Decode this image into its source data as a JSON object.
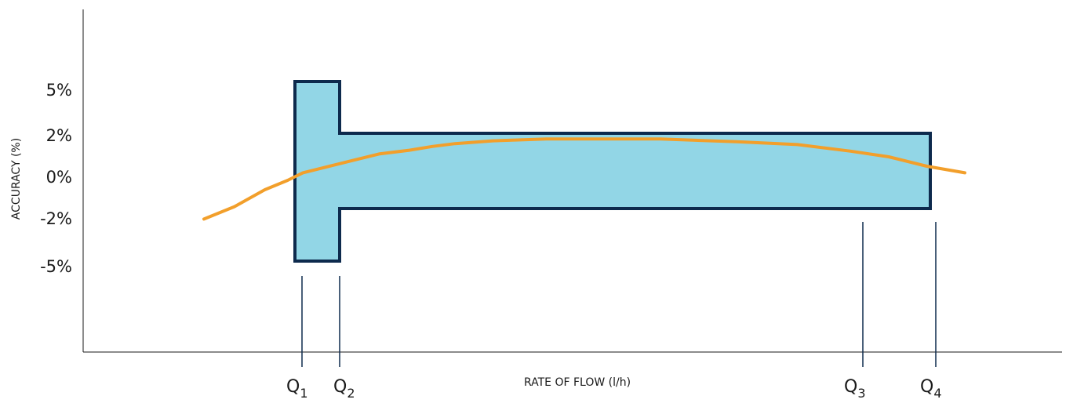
{
  "chart_data": {
    "type": "line",
    "title": "",
    "xlabel": "RATE OF FLOW (l/h)",
    "ylabel": "ACCURACY (%)",
    "y_tick_labels": [
      "5%",
      "2%",
      "0%",
      "-2%",
      "-5%"
    ],
    "y_tick_values": [
      5,
      2,
      0,
      -2,
      -5
    ],
    "ylim": [
      -10,
      10
    ],
    "flow_markers": [
      {
        "label": "Q",
        "sub": "1"
      },
      {
        "label": "Q",
        "sub": "2"
      },
      {
        "label": "Q",
        "sub": "3"
      },
      {
        "label": "Q",
        "sub": "4"
      }
    ],
    "tolerance_envelope": {
      "lower_zone": {
        "from": "Q1",
        "to": "Q2",
        "upper": 5,
        "lower": -5
      },
      "upper_zone": {
        "from": "Q2",
        "to": "Q4",
        "upper": 2,
        "lower": -2
      },
      "fill_color": "#92d6e6",
      "stroke_color": "#0d2a4d"
    },
    "series": [
      {
        "color": "#f29f2b",
        "x": [
          0.0,
          0.04,
          0.08,
          0.11,
          0.13,
          0.16,
          0.2,
          0.23,
          0.27,
          0.3,
          0.33,
          0.38,
          0.45,
          0.52,
          0.6,
          0.7,
          0.78,
          0.85,
          0.9,
          0.95,
          1.0
        ],
        "y": [
          -2.6,
          -1.9,
          -1.0,
          -0.5,
          -0.1,
          0.2,
          0.6,
          0.9,
          1.1,
          1.3,
          1.45,
          1.6,
          1.7,
          1.7,
          1.7,
          1.55,
          1.4,
          1.05,
          0.75,
          0.25,
          -0.1
        ]
      }
    ],
    "grid": false
  }
}
